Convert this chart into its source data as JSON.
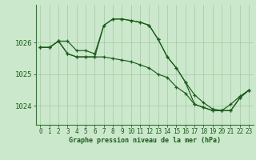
{
  "title": "Graphe pression niveau de la mer (hPa)",
  "background_color": "#cce8cc",
  "grid_color": "#aaccaa",
  "line_color": "#1a5c1a",
  "x_labels": [
    "0",
    "1",
    "2",
    "3",
    "4",
    "5",
    "6",
    "7",
    "8",
    "9",
    "10",
    "11",
    "12",
    "13",
    "14",
    "15",
    "16",
    "17",
    "18",
    "19",
    "20",
    "21",
    "22",
    "23"
  ],
  "ylim": [
    1023.4,
    1027.2
  ],
  "yticks": [
    1024,
    1025,
    1026
  ],
  "hours": [
    0,
    1,
    2,
    3,
    4,
    5,
    6,
    7,
    8,
    9,
    10,
    11,
    12,
    13,
    14,
    15,
    16,
    17,
    18,
    19,
    20,
    21,
    22,
    23
  ],
  "line_upper": [
    1025.85,
    1025.85,
    1026.05,
    1026.05,
    1025.75,
    1025.75,
    1025.65,
    1026.55,
    1026.75,
    1026.75,
    1026.7,
    1026.65,
    1026.55,
    1026.1,
    1025.55,
    1025.2,
    1024.75,
    1024.35,
    1024.1,
    1023.9,
    1023.85,
    1023.85,
    1024.25,
    1024.5
  ],
  "line_lower": [
    1025.85,
    1025.85,
    1026.05,
    1025.65,
    1025.55,
    1025.55,
    1025.55,
    1025.55,
    1025.5,
    1025.45,
    1025.4,
    1025.3,
    1025.2,
    1025.0,
    1024.9,
    1024.6,
    1024.4,
    1024.05,
    1023.95,
    1023.85,
    1023.85,
    1024.05,
    1024.3,
    1024.5
  ],
  "line_mid": [
    1025.85,
    1025.85,
    1026.05,
    1025.65,
    1025.55,
    1025.55,
    1025.55,
    1026.55,
    1026.75,
    1026.75,
    1026.7,
    1026.65,
    1026.55,
    1026.1,
    1025.55,
    1025.2,
    1024.75,
    1024.05,
    1023.95,
    1023.85,
    1023.85,
    1023.85,
    1024.25,
    1024.5
  ],
  "title_fontsize": 6.0,
  "tick_fontsize": 5.5,
  "ytick_fontsize": 6.5
}
